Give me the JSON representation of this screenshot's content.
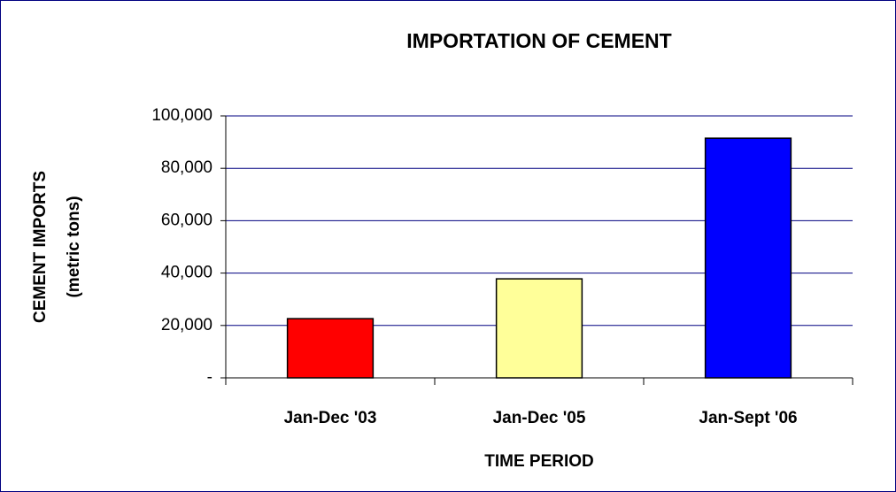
{
  "chart_data": {
    "type": "bar",
    "title": "IMPORTATION OF CEMENT",
    "x_label": "TIME PERIOD",
    "y_label": [
      "CEMENT IMPORTS",
      "(metric tons)"
    ],
    "categories": [
      "Jan-Dec '03",
      "Jan-Dec '05",
      "Jan-Sept '06"
    ],
    "values": [
      22600,
      37800,
      91500
    ],
    "colors": [
      "#ff0000",
      "#ffff99",
      "#0000ff"
    ],
    "ylim": [
      0,
      100000
    ],
    "yticks": [
      {
        "value": 0,
        "label": "-"
      },
      {
        "value": 20000,
        "label": "20,000"
      },
      {
        "value": 40000,
        "label": "40,000"
      },
      {
        "value": 60000,
        "label": "60,000"
      },
      {
        "value": 80000,
        "label": "80,000"
      },
      {
        "value": 100000,
        "label": "100,000"
      }
    ],
    "grid": true
  }
}
